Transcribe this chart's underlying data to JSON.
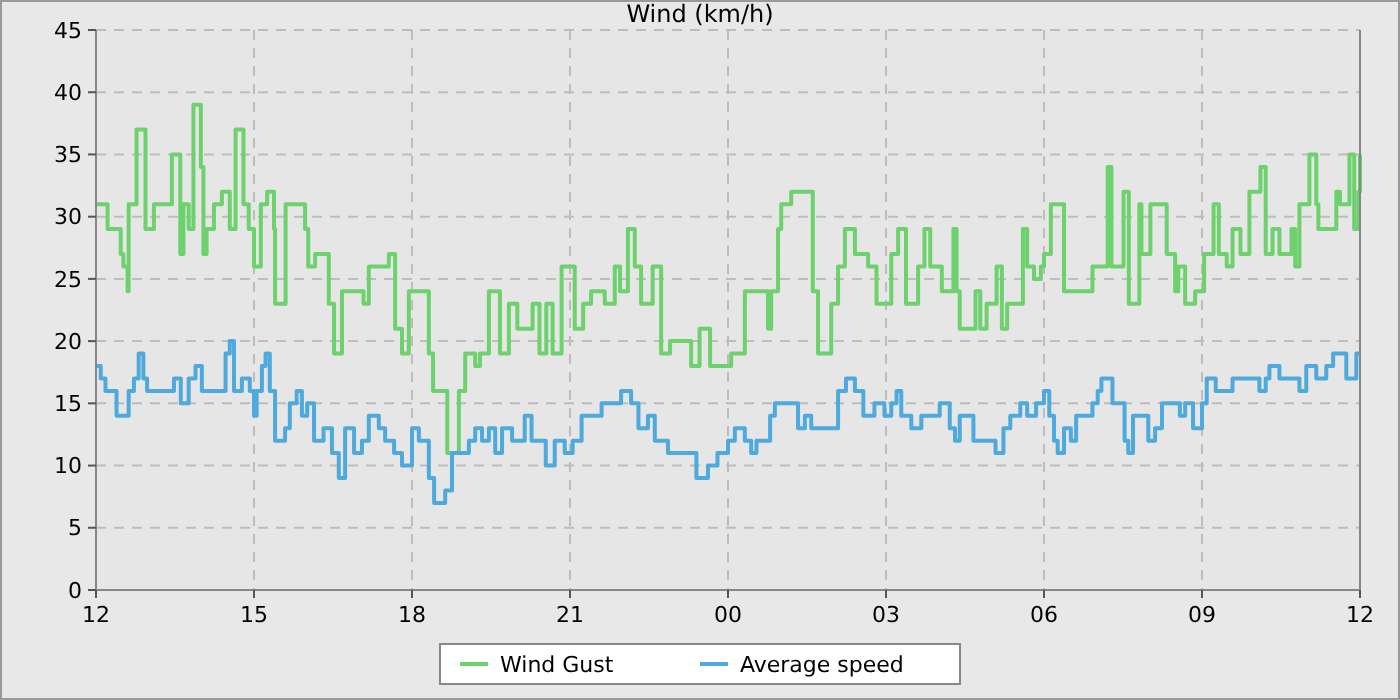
{
  "chart_data": {
    "type": "step",
    "title": "Wind (km/h)",
    "xlim": [
      12,
      36
    ],
    "xticks": [
      {
        "value": 12,
        "label": "12"
      },
      {
        "value": 15,
        "label": "15"
      },
      {
        "value": 18,
        "label": "18"
      },
      {
        "value": 21,
        "label": "21"
      },
      {
        "value": 24,
        "label": "00"
      },
      {
        "value": 27,
        "label": "03"
      },
      {
        "value": 30,
        "label": "06"
      },
      {
        "value": 33,
        "label": "09"
      },
      {
        "value": 36,
        "label": "12"
      }
    ],
    "ylim": [
      0,
      45
    ],
    "yticks": [
      0,
      5,
      10,
      15,
      20,
      25,
      30,
      35,
      40,
      45
    ],
    "grid": true,
    "legend": "bottom",
    "line_style": "solid",
    "marker": "none",
    "series": [
      {
        "name": "Wind Gust",
        "color": "#6dd16d",
        "x": [
          12.0,
          12.22,
          12.47,
          12.52,
          12.6,
          12.62,
          12.77,
          12.94,
          13.1,
          13.44,
          13.6,
          13.66,
          13.76,
          13.85,
          13.99,
          14.04,
          14.1,
          14.24,
          14.39,
          14.54,
          14.65,
          14.8,
          14.9,
          15.0,
          15.13,
          15.25,
          15.38,
          15.4,
          15.6,
          15.97,
          16.03,
          16.16,
          16.42,
          16.52,
          16.67,
          17.08,
          17.18,
          17.56,
          17.68,
          17.81,
          17.94,
          18.32,
          18.4,
          18.67,
          18.89,
          19.01,
          19.2,
          19.29,
          19.46,
          19.67,
          19.84,
          20.0,
          20.29,
          20.42,
          20.55,
          20.67,
          20.84,
          21.09,
          21.25,
          21.4,
          21.66,
          21.85,
          21.95,
          22.1,
          22.23,
          22.35,
          22.57,
          22.73,
          22.9,
          23.3,
          23.46,
          23.66,
          24.06,
          24.32,
          24.76,
          24.82,
          24.95,
          25.01,
          25.2,
          25.61,
          25.71,
          25.96,
          26.09,
          26.22,
          26.41,
          26.66,
          26.82,
          27.1,
          27.23,
          27.38,
          27.61,
          27.73,
          27.84,
          28.06,
          28.28,
          28.34,
          28.4,
          28.7,
          28.79,
          28.91,
          29.1,
          29.2,
          29.3,
          29.6,
          29.68,
          29.81,
          29.94,
          30.0,
          30.13,
          30.38,
          30.92,
          31.21,
          31.28,
          31.51,
          31.61,
          31.81,
          31.85,
          32.02,
          32.33,
          32.49,
          32.55,
          32.68,
          32.87,
          33.04,
          33.22,
          33.32,
          33.47,
          33.58,
          33.73,
          33.9,
          34.11,
          34.21,
          34.34,
          34.47,
          34.7,
          34.77,
          34.85,
          35.04,
          35.17,
          35.21,
          35.55,
          35.62,
          35.8,
          35.89,
          35.97,
          36.0
        ],
        "values": [
          31,
          29,
          27,
          26,
          24,
          31,
          37,
          29,
          31,
          35,
          27,
          31,
          29,
          39,
          34,
          27,
          29,
          31,
          32,
          29,
          37,
          31,
          29,
          26,
          31,
          32,
          29,
          23,
          31,
          29,
          26,
          27,
          23,
          19,
          24,
          23,
          26,
          27,
          21,
          19,
          24,
          19,
          16,
          11,
          16,
          19,
          18,
          19,
          24,
          19,
          23,
          21,
          23,
          19,
          23,
          19,
          26,
          21,
          23,
          24,
          23,
          26,
          24,
          29,
          26,
          23,
          26,
          19,
          20,
          18,
          21,
          18,
          19,
          24,
          21,
          24,
          29,
          31,
          32,
          24,
          19,
          23,
          26,
          29,
          27,
          26,
          23,
          27,
          29,
          23,
          26,
          29,
          26,
          24,
          29,
          24,
          21,
          24,
          21,
          23,
          26,
          21,
          23,
          29,
          26,
          25,
          26,
          27,
          31,
          24,
          26,
          34,
          26,
          32,
          23,
          31,
          27,
          31,
          27,
          24,
          26,
          23,
          24,
          27,
          31,
          27,
          26,
          29,
          27,
          32,
          34,
          27,
          29,
          27,
          29,
          26,
          31,
          35,
          31,
          29,
          32,
          31,
          35,
          29,
          32,
          35
        ]
      },
      {
        "name": "Average speed",
        "color": "#4ea9dc",
        "x": [
          12.0,
          12.09,
          12.18,
          12.39,
          12.62,
          12.72,
          12.81,
          12.9,
          12.97,
          13.48,
          13.61,
          13.76,
          13.89,
          14.01,
          14.46,
          14.54,
          14.62,
          14.77,
          14.92,
          15.0,
          15.05,
          15.15,
          15.22,
          15.3,
          15.4,
          15.59,
          15.68,
          15.81,
          15.91,
          16.01,
          16.14,
          16.32,
          16.48,
          16.61,
          16.73,
          16.9,
          17.05,
          17.18,
          17.37,
          17.49,
          17.66,
          17.81,
          18.0,
          18.13,
          18.32,
          18.42,
          18.63,
          18.76,
          19.08,
          19.2,
          19.33,
          19.46,
          19.58,
          19.71,
          19.9,
          20.14,
          20.27,
          20.54,
          20.71,
          20.9,
          21.05,
          21.22,
          21.6,
          21.97,
          22.16,
          22.3,
          22.48,
          22.61,
          22.86,
          23.4,
          23.62,
          23.8,
          24.0,
          24.13,
          24.32,
          24.44,
          24.54,
          24.8,
          24.89,
          25.33,
          25.46,
          25.58,
          26.09,
          26.24,
          26.41,
          26.57,
          26.78,
          26.97,
          27.1,
          27.2,
          27.29,
          27.48,
          27.67,
          28.02,
          28.21,
          28.31,
          28.4,
          28.66,
          29.08,
          29.23,
          29.36,
          29.55,
          29.68,
          29.85,
          30.0,
          30.1,
          30.19,
          30.26,
          30.38,
          30.51,
          30.61,
          30.92,
          31.02,
          31.09,
          31.3,
          31.53,
          31.6,
          31.69,
          31.98,
          32.11,
          32.24,
          32.58,
          32.68,
          32.83,
          33.0,
          33.09,
          33.26,
          33.58,
          34.09,
          34.21,
          34.28,
          34.47,
          34.85,
          34.98,
          35.17,
          35.36,
          35.49,
          35.74,
          35.93,
          36.0
        ],
        "values": [
          18,
          17,
          16,
          14,
          16,
          17,
          19,
          17,
          16,
          17,
          15,
          17,
          18,
          16,
          19,
          20,
          16,
          17,
          16,
          14,
          16,
          18,
          19,
          16,
          12,
          13,
          15,
          16,
          14,
          15,
          12,
          13,
          11,
          9,
          13,
          11,
          12,
          14,
          13,
          12,
          11,
          10,
          13,
          12,
          9,
          7,
          8,
          11,
          12,
          13,
          12,
          13,
          11,
          13,
          12,
          14,
          12,
          10,
          12,
          11,
          12,
          14,
          15,
          16,
          15,
          13,
          14,
          12,
          11,
          9,
          10,
          11,
          12,
          13,
          12,
          11,
          12,
          14,
          15,
          13,
          14,
          13,
          16,
          17,
          16,
          14,
          15,
          14,
          15,
          16,
          14,
          13,
          14,
          15,
          13,
          12,
          14,
          12,
          11,
          13,
          14,
          15,
          14,
          15,
          16,
          14,
          12,
          11,
          13,
          12,
          14,
          15,
          16,
          17,
          15,
          12,
          11,
          14,
          12,
          13,
          15,
          14,
          15,
          13,
          15,
          17,
          16,
          17,
          16,
          17,
          18,
          17,
          16,
          18,
          17,
          18,
          19,
          17,
          19,
          19
        ]
      }
    ]
  }
}
